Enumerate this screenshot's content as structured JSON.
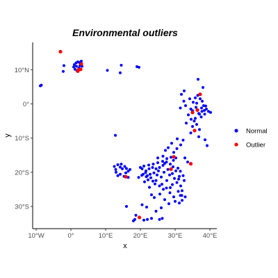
{
  "chart_data": {
    "type": "scatter",
    "title": "Environmental outliers",
    "xlabel": "x",
    "ylabel": "y",
    "xlim": [
      -11,
      42
    ],
    "ylim": [
      -36.5,
      18
    ],
    "xticks": [
      {
        "value": -10,
        "label": "10°W"
      },
      {
        "value": 0,
        "label": "0°"
      },
      {
        "value": 10,
        "label": "10°E"
      },
      {
        "value": 20,
        "label": "20°E"
      },
      {
        "value": 30,
        "label": "30°E"
      },
      {
        "value": 40,
        "label": "40°E"
      }
    ],
    "yticks": [
      {
        "value": 10,
        "label": "10°N"
      },
      {
        "value": 0,
        "label": "0°"
      },
      {
        "value": -10,
        "label": "10°S"
      },
      {
        "value": -20,
        "label": "20°S"
      },
      {
        "value": -30,
        "label": "30°S"
      }
    ],
    "grid": false,
    "legend_position": "right",
    "series": [
      {
        "name": "Normal",
        "color": "#0000ff",
        "points": [
          [
            -8.8,
            5.3
          ],
          [
            -8.5,
            5.5
          ],
          [
            -2.0,
            11.2
          ],
          [
            -2.2,
            9.5
          ],
          [
            0.8,
            10.8
          ],
          [
            1.0,
            11.5
          ],
          [
            1.5,
            12.0
          ],
          [
            2.0,
            12.3
          ],
          [
            2.5,
            12.1
          ],
          [
            2.8,
            11.7
          ],
          [
            3.2,
            11.0
          ],
          [
            1.2,
            10.1
          ],
          [
            1.8,
            9.6
          ],
          [
            2.3,
            10.5
          ],
          [
            2.6,
            11.2
          ],
          [
            3.0,
            12.5
          ],
          [
            1.6,
            11.0
          ],
          [
            10.5,
            9.8
          ],
          [
            14.5,
            11.3
          ],
          [
            14.2,
            9.1
          ],
          [
            19.0,
            10.9
          ],
          [
            19.6,
            10.7
          ],
          [
            12.8,
            -9.2
          ],
          [
            35.8,
            1.8
          ],
          [
            36.5,
            2.5
          ],
          [
            37.2,
            1.5
          ],
          [
            37.8,
            0.8
          ],
          [
            38.2,
            -0.5
          ],
          [
            39.0,
            -1.5
          ],
          [
            39.6,
            -2.2
          ],
          [
            38.5,
            -3.0
          ],
          [
            37.5,
            -3.8
          ],
          [
            36.8,
            -2.8
          ],
          [
            36.0,
            -1.0
          ],
          [
            35.2,
            0.5
          ],
          [
            34.5,
            -1.5
          ],
          [
            33.0,
            -0.5
          ],
          [
            32.5,
            0.8
          ],
          [
            31.5,
            -1.2
          ],
          [
            33.8,
            -3.2
          ],
          [
            34.6,
            -4.5
          ],
          [
            35.5,
            -5.0
          ],
          [
            36.2,
            -6.0
          ],
          [
            37.0,
            -7.5
          ],
          [
            34.5,
            -8.5
          ],
          [
            36.8,
            -9.6
          ],
          [
            38.6,
            -10.5
          ],
          [
            39.2,
            -12.2
          ],
          [
            31.8,
            2.8
          ],
          [
            32.6,
            3.8
          ],
          [
            36.6,
            7.2
          ],
          [
            38.0,
            4.8
          ],
          [
            35.0,
            -2.0
          ],
          [
            37.6,
            -1.2
          ],
          [
            38.8,
            -0.6
          ],
          [
            40.2,
            -2.5
          ],
          [
            34.2,
            1.5
          ],
          [
            36.2,
            0.2
          ],
          [
            37.0,
            -3.0
          ],
          [
            35.8,
            -4.2
          ],
          [
            33.2,
            -5.6
          ],
          [
            35.0,
            -6.6
          ],
          [
            37.7,
            -2.2
          ],
          [
            38.4,
            -1.9
          ],
          [
            32.3,
            -10.6
          ],
          [
            31.6,
            -12.0
          ],
          [
            30.5,
            -13.1
          ],
          [
            29.6,
            -14.2
          ],
          [
            28.8,
            -15.6
          ],
          [
            27.6,
            -16.0
          ],
          [
            27.0,
            -17.4
          ],
          [
            26.5,
            -18.0
          ],
          [
            25.5,
            -18.6
          ],
          [
            24.5,
            -19.0
          ],
          [
            23.5,
            -18.6
          ],
          [
            22.5,
            -19.0
          ],
          [
            21.6,
            -19.6
          ],
          [
            20.5,
            -19.0
          ],
          [
            20.0,
            -18.6
          ],
          [
            21.0,
            -18.2
          ],
          [
            22.4,
            -17.9
          ],
          [
            23.7,
            -17.6
          ],
          [
            25.0,
            -17.2
          ],
          [
            26.4,
            -16.8
          ],
          [
            27.5,
            -17.0
          ],
          [
            28.6,
            -17.6
          ],
          [
            29.4,
            -18.4
          ],
          [
            30.8,
            -18.8
          ],
          [
            31.5,
            -19.7
          ],
          [
            32.3,
            -21.0
          ],
          [
            31.0,
            -22.0
          ],
          [
            30.5,
            -23.0
          ],
          [
            31.6,
            -24.0
          ],
          [
            32.0,
            -25.4
          ],
          [
            31.5,
            -26.8
          ],
          [
            32.0,
            -28.2
          ],
          [
            31.2,
            -29.0
          ],
          [
            30.0,
            -28.5
          ],
          [
            29.6,
            -27.2
          ],
          [
            28.5,
            -26.0
          ],
          [
            27.5,
            -24.6
          ],
          [
            26.6,
            -25.0
          ],
          [
            25.5,
            -24.0
          ],
          [
            24.5,
            -22.4
          ],
          [
            23.0,
            -21.6
          ],
          [
            22.0,
            -21.0
          ],
          [
            20.8,
            -20.6
          ],
          [
            19.5,
            -21.5
          ],
          [
            21.2,
            -22.8
          ],
          [
            22.6,
            -24.4
          ],
          [
            23.2,
            -26.6
          ],
          [
            24.0,
            -27.4
          ],
          [
            25.6,
            -26.4
          ],
          [
            27.0,
            -28.0
          ],
          [
            28.2,
            -29.2
          ],
          [
            26.0,
            -30.4
          ],
          [
            24.5,
            -31.4
          ],
          [
            23.2,
            -33.5
          ],
          [
            22.0,
            -33.8
          ],
          [
            21.0,
            -34.0
          ],
          [
            25.5,
            -33.8
          ],
          [
            26.3,
            -33.5
          ],
          [
            18.7,
            -32.6
          ],
          [
            18.4,
            -33.8
          ],
          [
            18.0,
            -34.2
          ],
          [
            20.5,
            -29.5
          ],
          [
            21.8,
            -30.2
          ],
          [
            16.0,
            -30.0
          ],
          [
            12.5,
            -18.3
          ],
          [
            12.9,
            -19.2
          ],
          [
            13.5,
            -17.8
          ],
          [
            14.2,
            -18.5
          ],
          [
            14.8,
            -19.0
          ],
          [
            15.5,
            -18.3
          ],
          [
            16.0,
            -18.9
          ],
          [
            16.5,
            -19.7
          ],
          [
            17.0,
            -19.2
          ],
          [
            13.0,
            -20.0
          ],
          [
            14.2,
            -20.6
          ],
          [
            15.3,
            -21.2
          ],
          [
            16.5,
            -21.5
          ],
          [
            13.5,
            -21.0
          ],
          [
            15.8,
            -20.2
          ],
          [
            14.5,
            -17.6
          ],
          [
            25.0,
            -15.8
          ],
          [
            26.5,
            -15.3
          ],
          [
            27.2,
            -13.6
          ],
          [
            28.0,
            -12.8
          ],
          [
            29.0,
            -11.5
          ],
          [
            30.6,
            -10.2
          ],
          [
            29.5,
            -16.5
          ],
          [
            30.2,
            -15.8
          ],
          [
            32.8,
            -15.8
          ],
          [
            33.6,
            -17.0
          ],
          [
            28.4,
            -20.8
          ],
          [
            29.8,
            -21.8
          ],
          [
            27.6,
            -22.4
          ],
          [
            26.0,
            -21.4
          ],
          [
            24.8,
            -20.8
          ],
          [
            23.9,
            -20.2
          ],
          [
            22.8,
            -20.6
          ],
          [
            21.5,
            -20.1
          ],
          [
            20.4,
            -20.9
          ],
          [
            21.7,
            -21.3
          ],
          [
            25.2,
            -19.6
          ],
          [
            26.8,
            -20.0
          ],
          [
            27.9,
            -19.2
          ],
          [
            29.2,
            -20.4
          ],
          [
            30.2,
            -19.6
          ],
          [
            31.2,
            -21.2
          ],
          [
            32.6,
            -22.4
          ],
          [
            30.9,
            -25.6
          ],
          [
            31.9,
            -26.8
          ],
          [
            32.9,
            -27.2
          ],
          [
            29.2,
            -23.6
          ],
          [
            28.6,
            -24.5
          ],
          [
            26.2,
            -23.5
          ],
          [
            24.2,
            -23.4
          ],
          [
            23.6,
            -22.6
          ],
          [
            22.2,
            -22.2
          ]
        ]
      },
      {
        "name": "Outlier",
        "color": "#ff0000",
        "points": [
          [
            -3.0,
            15.3
          ],
          [
            2.0,
            9.6
          ],
          [
            2.8,
            10.1
          ],
          [
            3.0,
            11.7
          ],
          [
            2.2,
            10.0
          ],
          [
            37.2,
            2.8
          ],
          [
            36.4,
            -1.8
          ],
          [
            35.0,
            -2.5
          ],
          [
            35.6,
            -7.8
          ],
          [
            29.6,
            -15.5
          ],
          [
            28.8,
            -19.1
          ],
          [
            34.5,
            -17.5
          ],
          [
            15.8,
            -21.3
          ],
          [
            19.7,
            -33.2
          ]
        ]
      }
    ]
  }
}
